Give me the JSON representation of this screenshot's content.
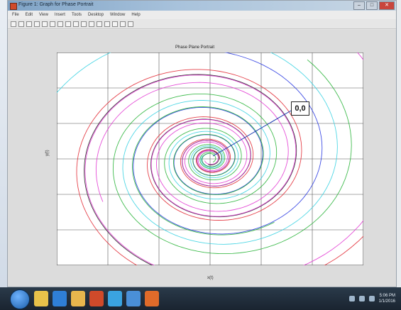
{
  "window": {
    "title": "Figure 1: Graph for Phase Portrait",
    "buttons": {
      "minimize": "–",
      "maximize": "□",
      "close": "✕"
    }
  },
  "menu": [
    "File",
    "Edit",
    "View",
    "Insert",
    "Tools",
    "Desktop",
    "Window",
    "Help"
  ],
  "toolbar_icons": [
    "new-icon",
    "open-icon",
    "save-icon",
    "print-icon",
    "pointer-icon",
    "zoom-in-icon",
    "zoom-out-icon",
    "pan-icon",
    "rotate-icon",
    "data-cursor-icon",
    "brush-icon",
    "link-icon",
    "colorbar-icon",
    "legend-icon",
    "grid-icon",
    "plot-tools-icon"
  ],
  "annotation": {
    "text": "0,0"
  },
  "plot": {
    "title": "Phase Plane Portrait",
    "xlabel": "x(t)",
    "ylabel": "y(t)",
    "colors": [
      "#e0202a",
      "#20b030",
      "#2030e0",
      "#30d0e0",
      "#e030d0",
      "#202020"
    ]
  },
  "chart_data": {
    "type": "line",
    "title": "Phase Plane Portrait",
    "xlabel": "x(t)",
    "ylabel": "y(t)",
    "xlim": [
      -3,
      3
    ],
    "ylim": [
      -3,
      3
    ],
    "xticks": [
      -3,
      -2,
      -1,
      0,
      1,
      2,
      3
    ],
    "yticks": [
      -3,
      -2,
      -1,
      0,
      1,
      2,
      3
    ],
    "grid": true,
    "annotation": {
      "text": "0,0",
      "points_to": [
        0,
        0
      ]
    },
    "series_description": "spiral trajectories converging to the origin",
    "series": [
      {
        "start_radius": 4.2,
        "phase": 0.0,
        "color": "#e0202a"
      },
      {
        "start_radius": 3.4,
        "phase": 0.9,
        "color": "#20b030"
      },
      {
        "start_radius": 3.0,
        "phase": 1.8,
        "color": "#2030e0"
      },
      {
        "start_radius": 3.8,
        "phase": 2.7,
        "color": "#30d0e0"
      },
      {
        "start_radius": 2.6,
        "phase": 3.6,
        "color": "#e030d0"
      },
      {
        "start_radius": 3.2,
        "phase": 4.5,
        "color": "#202020"
      },
      {
        "start_radius": 2.2,
        "phase": 5.4,
        "color": "#20b030"
      },
      {
        "start_radius": 4.6,
        "phase": 1.3,
        "color": "#e030d0"
      }
    ]
  },
  "taskbar": {
    "apps": [
      "explorer-icon",
      "ie-icon",
      "folder-icon",
      "media-icon",
      "chrome-icon",
      "skype-icon",
      "matlab-icon"
    ],
    "clock": {
      "time": "5:06 PM",
      "date": "1/1/2016"
    }
  }
}
